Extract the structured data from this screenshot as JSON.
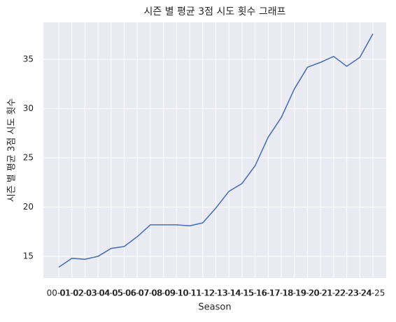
{
  "chart_data": {
    "type": "line",
    "title": "시즌 별 평균 3점 시도 횟수 그래프",
    "x_label": "Season",
    "y_label": "시즌 별 평균 3점 시도 횟수",
    "categories": [
      "00-01",
      "01-02",
      "02-03",
      "03-04",
      "04-05",
      "05-06",
      "06-07",
      "07-08",
      "08-09",
      "09-10",
      "10-11",
      "11-12",
      "12-13",
      "13-14",
      "14-15",
      "15-16",
      "16-17",
      "17-18",
      "18-19",
      "19-20",
      "20-21",
      "21-22",
      "22-23",
      "23-24",
      "24-25"
    ],
    "series": [
      {
        "name": "평균 3점 시도 횟수",
        "color": "#4c72b0",
        "values": [
          13.9,
          14.8,
          14.7,
          15.0,
          15.8,
          16.0,
          17.0,
          18.2,
          18.2,
          18.2,
          18.1,
          18.4,
          19.9,
          21.6,
          22.4,
          24.2,
          27.1,
          29.1,
          32.0,
          34.2,
          34.7,
          35.3,
          34.3,
          35.2,
          37.6
        ]
      }
    ],
    "ylim": [
      12.8,
      38.76
    ],
    "yticks": [
      15,
      20,
      25,
      30,
      35
    ],
    "grid": true
  }
}
